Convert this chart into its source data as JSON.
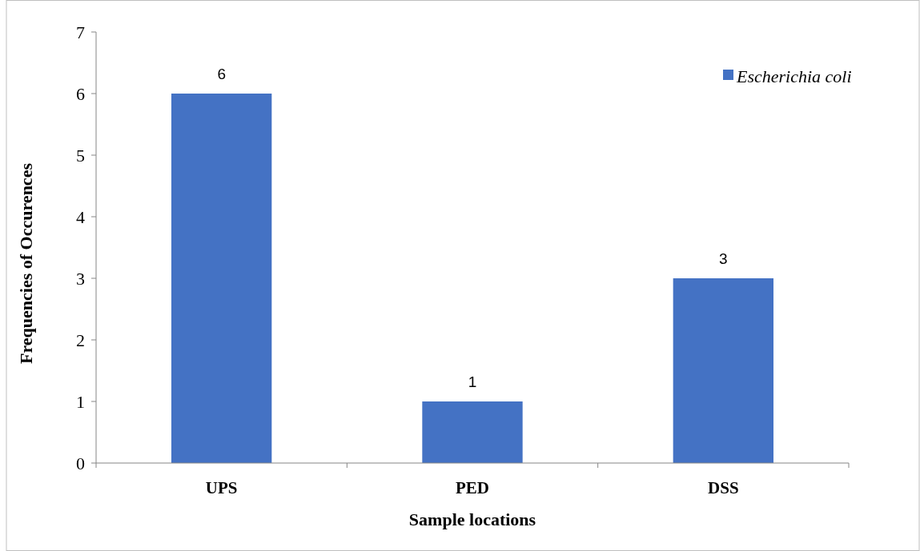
{
  "chart_data": {
    "type": "bar",
    "xlabel": "Sample locations",
    "ylabel": "Frequencies of Occurences",
    "categories": [
      "UPS",
      "PED",
      "DSS"
    ],
    "series": [
      {
        "name": "Escherichia coli",
        "color": "#4472c4",
        "values": [
          6,
          1,
          3
        ]
      }
    ],
    "ylim": [
      0,
      7
    ],
    "yticks": [
      0,
      1,
      2,
      3,
      4,
      5,
      6,
      7
    ],
    "grid": false,
    "legend": "top right",
    "data_labels": true
  }
}
